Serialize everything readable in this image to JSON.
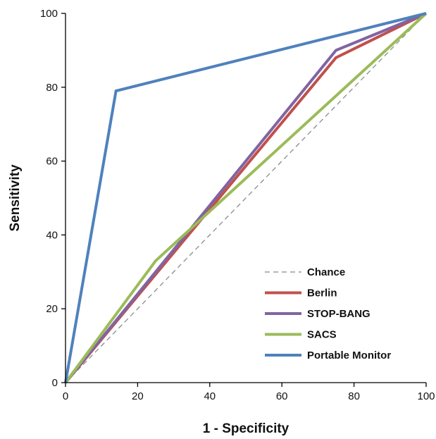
{
  "chart_data": {
    "type": "line",
    "xlabel": "1 - Specificity",
    "ylabel": "Sensitivity",
    "xlim": [
      0,
      100
    ],
    "ylim": [
      0,
      100
    ],
    "xticks": [
      0,
      20,
      40,
      60,
      80,
      100
    ],
    "yticks": [
      0,
      20,
      40,
      60,
      80,
      100
    ],
    "grid": false,
    "legend_position": "bottom-right",
    "series": [
      {
        "name": "Chance",
        "color": "#8c8c8c",
        "dashed": true,
        "x": [
          0,
          100
        ],
        "y": [
          0,
          100
        ]
      },
      {
        "name": "Berlin",
        "color": "#c0504d",
        "dashed": false,
        "x": [
          0,
          75,
          100
        ],
        "y": [
          0,
          88,
          100
        ]
      },
      {
        "name": "STOP-BANG",
        "color": "#8064a2",
        "dashed": false,
        "x": [
          0,
          75,
          100
        ],
        "y": [
          0,
          90,
          100
        ]
      },
      {
        "name": "SACS",
        "color": "#9bbb59",
        "dashed": false,
        "x": [
          0,
          25,
          100
        ],
        "y": [
          0,
          33,
          100
        ]
      },
      {
        "name": "Portable Monitor",
        "color": "#4f81bd",
        "dashed": false,
        "x": [
          0,
          14,
          100
        ],
        "y": [
          0,
          79,
          100
        ]
      }
    ]
  }
}
